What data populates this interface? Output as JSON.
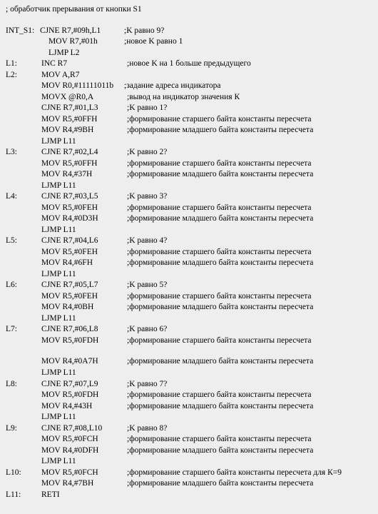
{
  "header": " ; обработчик прерывания от кнопки S1",
  "lines": [
    {
      "label": "INT_S1:",
      "instr": "CJNE  R7,#09h,L1",
      "comment": ";K равно 9?",
      "style": "a"
    },
    {
      "label": "",
      "instr": "MOV  R7,#01h",
      "comment": ";новое K равно 1",
      "style": "b"
    },
    {
      "label": "",
      "instr": "LJMP L2",
      "comment": "",
      "style": "b"
    },
    {
      "label": "L1:",
      "instr": "INC  R7",
      "comment": ";новое K на 1 больше предыдущего",
      "style": "c"
    },
    {
      "label": "L2:",
      "instr": "MOV  A,R7",
      "comment": "",
      "style": "c"
    },
    {
      "label": "",
      "instr": "MOV R0,#11111011b",
      "comment": ";задание адреса индикатора",
      "style": "c2"
    },
    {
      "label": "",
      "instr": "MOVX @R0,A",
      "comment": ";вывод на индикатор значения К",
      "style": "c"
    },
    {
      "label": "",
      "instr": "CJNE  R7,#01,L3",
      "comment": ";K равно 1?",
      "style": "c"
    },
    {
      "label": "",
      "instr": "MOV R5,#0FFH",
      "comment": ";формирование старшего байта константы пересчета",
      "style": "c"
    },
    {
      "label": "",
      "instr": "MOV R4,#9BH",
      "comment": ";формирование младшего байта константы пересчета",
      "style": "c"
    },
    {
      "label": "",
      "instr": "LJMP  L11",
      "comment": "",
      "style": "c"
    },
    {
      "label": "L3:",
      "instr": "CJNE  R7,#02,L4",
      "comment": ";K равно 2?",
      "style": "c"
    },
    {
      "label": "",
      "instr": "MOV R5,#0FFH",
      "comment": ";формирование старшего байта константы пересчета",
      "style": "c"
    },
    {
      "label": "",
      "instr": "MOV R4,#37H",
      "comment": ";формирование младшего байта константы пересчета",
      "style": "c"
    },
    {
      "label": "",
      "instr": "LJMP  L11",
      "comment": "",
      "style": "c"
    },
    {
      "label": "L4:",
      "instr": "CJNE  R7,#03,L5",
      "comment": " ;K равно 3?",
      "style": "c"
    },
    {
      "label": "",
      "instr": "MOV R5,#0FEH",
      "comment": ";формирование старшего байта константы пересчета",
      "style": "c"
    },
    {
      "label": "",
      "instr": "MOV R4,#0D3H",
      "comment": ";формирование младшего байта константы пересчета",
      "style": "c"
    },
    {
      "label": "",
      "instr": "LJMP  L11",
      "comment": "",
      "style": "c"
    },
    {
      "label": "L5:",
      "instr": "CJNE  R7,#04,L6",
      "comment": ";K равно 4?",
      "style": "c"
    },
    {
      "label": "",
      "instr": "MOV R5,#0FEH",
      "comment": ";формирование старшего байта константы пересчета",
      "style": "c"
    },
    {
      "label": "",
      "instr": "MOV R4,#6FH",
      "comment": ";формирование младшего байта константы пересчета",
      "style": "c"
    },
    {
      "label": "",
      "instr": "LJMP  L11",
      "comment": "",
      "style": "c"
    },
    {
      "label": "L6:",
      "instr": "CJNE  R7,#05,L7",
      "comment": ";K равно 5?",
      "style": "c"
    },
    {
      "label": "",
      "instr": "MOV R5,#0FEH",
      "comment": ";формирование старшего байта константы пересчета",
      "style": "c"
    },
    {
      "label": "",
      "instr": "MOV R4,#0BH",
      "comment": ";формирование младшего байта константы пересчета",
      "style": "c"
    },
    {
      "label": "",
      "instr": "LJMP  L11",
      "comment": "",
      "style": "c"
    },
    {
      "label": "L7:",
      "instr": "CJNE  R7,#06,L8",
      "comment": " ;K равно 6?",
      "style": "c"
    },
    {
      "label": "",
      "instr": "MOV R5,#0FDH",
      "comment": ";формирование старшего байта константы пересчета",
      "style": "c"
    },
    {
      "blank": true
    },
    {
      "label": "",
      "instr": "MOV R4,#0A7H",
      "comment": ";формирование младшего байта константы пересчета",
      "style": "c"
    },
    {
      "label": "",
      "instr": "LJMP  L11",
      "comment": "",
      "style": "c"
    },
    {
      "label": "L8:",
      "instr": "CJNE  R7,#07,L9",
      "comment": ";K равно 7?",
      "style": "c"
    },
    {
      "label": "",
      "instr": "MOV R5,#0FDH",
      "comment": ";формирование старшего байта константы пересчета",
      "style": "c"
    },
    {
      "label": "",
      "instr": "MOV R4,#43H",
      "comment": ";формирование младшего байта константы пересчета",
      "style": "c"
    },
    {
      "label": "",
      "instr": "LJMP  L11",
      "comment": "",
      "style": "c"
    },
    {
      "label": "L9:",
      "instr": "CJNE  R7,#08,L10",
      "comment": ";K равно 8?",
      "style": "c"
    },
    {
      "label": "",
      "instr": "MOV R5,#0FCH",
      "comment": ";формирование старшего байта константы пересчета",
      "style": "c"
    },
    {
      "label": "",
      "instr": "MOV R4,#0DFH",
      "comment": ";формирование младшего байта константы пересчета",
      "style": "c"
    },
    {
      "label": "",
      "instr": "LJMP  L11",
      "comment": "",
      "style": "c"
    },
    {
      "label": "L10:",
      "instr": "MOV R5,#0FCH",
      "comment": ";формирование старшего байта константы пересчета для К=9",
      "style": "c"
    },
    {
      "label": "",
      "instr": "MOV R4,#7BH",
      "comment": ";формирование младшего байта константы пересчета",
      "style": "c"
    },
    {
      "label": "L11:",
      "instr": "RETI",
      "comment": "",
      "style": "c"
    }
  ]
}
